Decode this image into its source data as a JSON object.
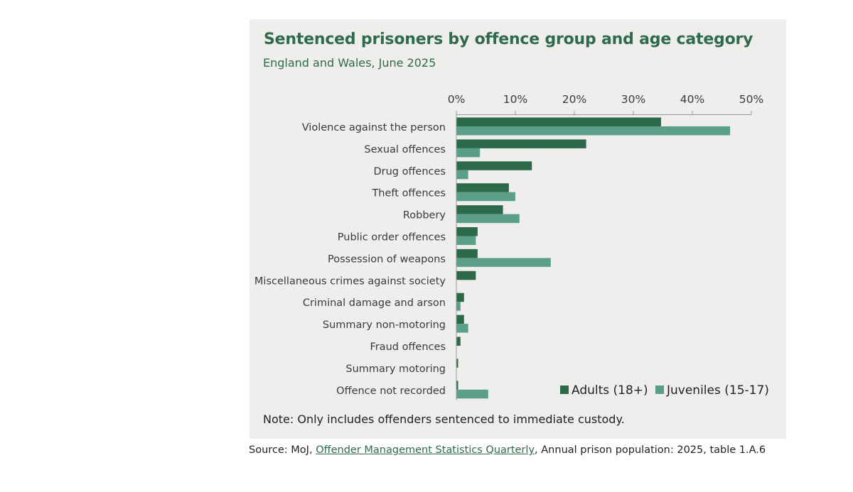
{
  "chart_data": {
    "type": "bar",
    "orientation": "horizontal",
    "title": "Sentenced prisoners by offence group and age category",
    "subtitle": "England and Wales, June 2025",
    "categories": [
      "Violence against the person",
      "Sexual offences",
      "Drug offences",
      "Theft offences",
      "Robbery",
      "Public order offences",
      "Possession of weapons",
      "Miscellaneous crimes against society",
      "Criminal damage and arson",
      "Summary non-motoring",
      "Fraud offences",
      "Summary motoring",
      "Offence not recorded"
    ],
    "series": [
      {
        "name": "Adults (18+)",
        "color": "#2d6a4a",
        "values": [
          34.7,
          22.0,
          12.8,
          8.9,
          7.9,
          3.6,
          3.6,
          3.3,
          1.3,
          1.3,
          0.7,
          0.3,
          0.3
        ]
      },
      {
        "name": "Juveniles (15-17)",
        "color": "#5b9e8a",
        "values": [
          46.4,
          4.0,
          2.0,
          10.0,
          10.7,
          3.3,
          16.0,
          0.0,
          0.7,
          2.0,
          0.0,
          0.0,
          5.4
        ]
      }
    ],
    "xlim": [
      0,
      50
    ],
    "xticks": [
      0,
      10,
      20,
      30,
      40,
      50
    ],
    "tick_labels": [
      "0%",
      "10%",
      "20%",
      "30%",
      "40%",
      "50%"
    ],
    "xlabel": "",
    "ylabel": "",
    "legend_position": "bottom-right",
    "note": "Note: Only includes offenders sentenced to immediate custody."
  },
  "source": {
    "prefix": "Source: MoJ, ",
    "link": "Offender Management Statistics Quarterly",
    "suffix": ", Annual prison population: 2025, table 1.A.6"
  }
}
